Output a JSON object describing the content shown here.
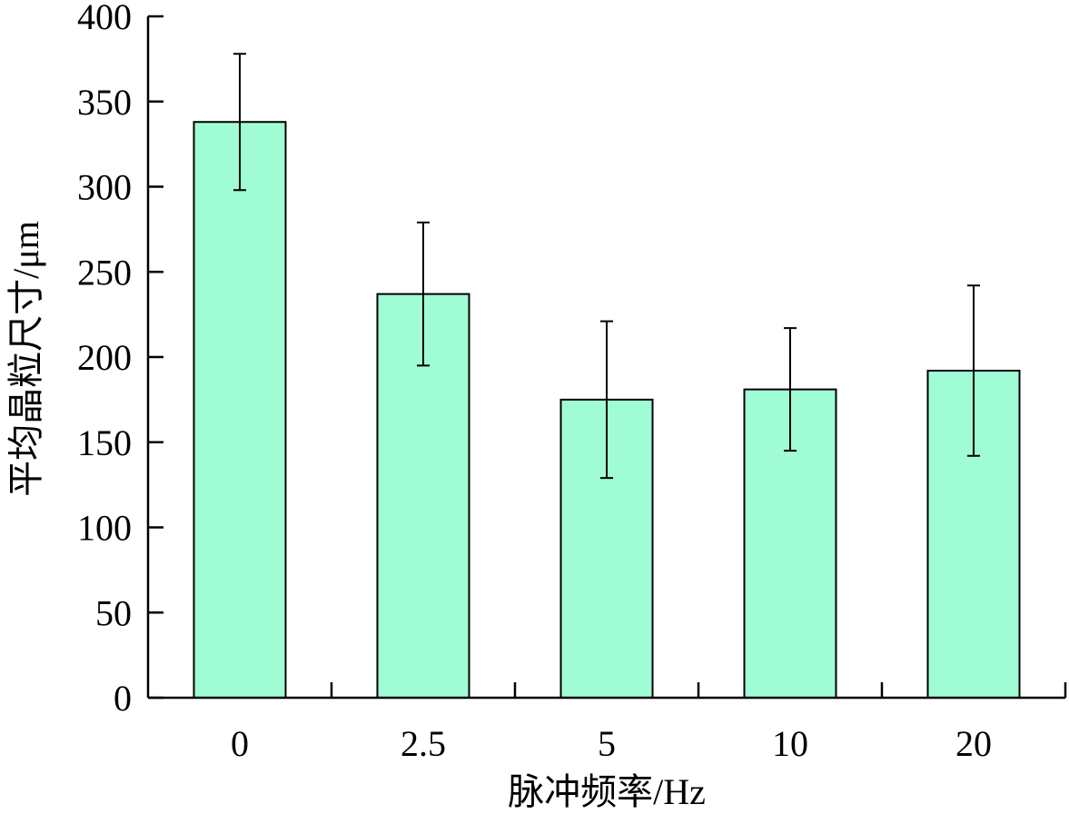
{
  "chart_data": {
    "type": "bar",
    "x_label": "脉冲频率/Hz",
    "y_label": "平均晶粒尺寸/μm",
    "categories": [
      "0",
      "2.5",
      "5",
      "10",
      "20"
    ],
    "values": [
      338,
      237,
      175,
      181,
      192
    ],
    "errors": [
      40,
      42,
      46,
      36,
      50
    ],
    "color": "#a0fcd4",
    "ylim": [
      0,
      400
    ],
    "yticks": [
      0,
      50,
      100,
      150,
      200,
      250,
      300,
      350,
      400
    ]
  }
}
